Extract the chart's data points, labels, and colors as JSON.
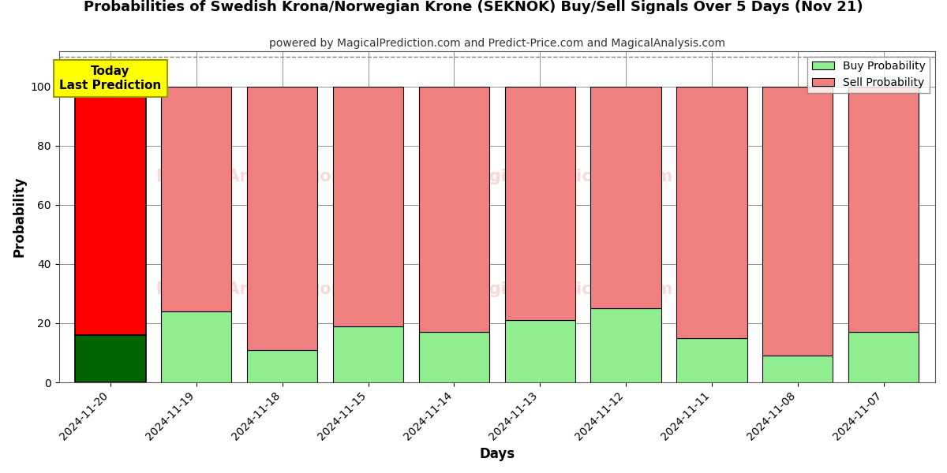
{
  "title": "Probabilities of Swedish Krona/Norwegian Krone (SEKNOK) Buy/Sell Signals Over 5 Days (Nov 21)",
  "subtitle": "powered by MagicalPrediction.com and Predict-Price.com and MagicalAnalysis.com",
  "xlabel": "Days",
  "ylabel": "Probability",
  "categories": [
    "2024-11-20",
    "2024-11-19",
    "2024-11-18",
    "2024-11-15",
    "2024-11-14",
    "2024-11-13",
    "2024-11-12",
    "2024-11-11",
    "2024-11-08",
    "2024-11-07"
  ],
  "buy_values": [
    16,
    24,
    11,
    19,
    17,
    21,
    25,
    15,
    9,
    17
  ],
  "sell_values": [
    84,
    76,
    89,
    81,
    83,
    79,
    75,
    85,
    91,
    83
  ],
  "today_buy_color": "#006400",
  "today_sell_color": "#FF0000",
  "buy_color": "#90EE90",
  "sell_color": "#F08080",
  "today_box_color": "#FFFF00",
  "today_box_text": "Today\nLast Prediction",
  "ylim": [
    0,
    112
  ],
  "yticks": [
    0,
    20,
    40,
    60,
    80,
    100
  ],
  "dashed_line_y": 110,
  "legend_buy": "Buy Probability",
  "legend_sell": "Sell Probability",
  "bar_edgecolor": "#000000",
  "watermark_color": "#F08080",
  "watermark_alpha": 0.3,
  "bar_width": 0.82,
  "figsize": [
    12.0,
    6.0
  ],
  "dpi": 100
}
